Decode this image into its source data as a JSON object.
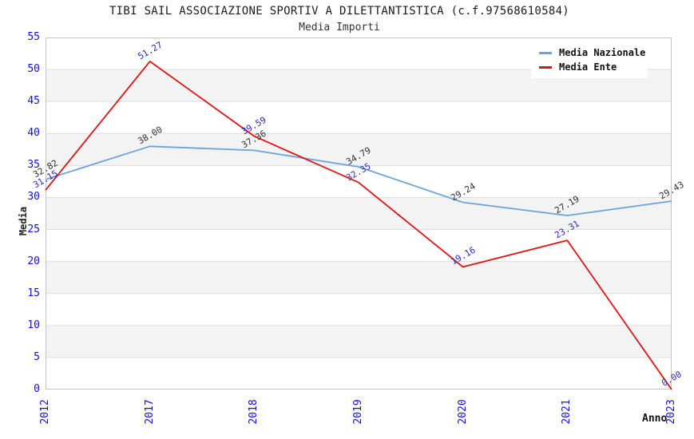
{
  "title": "TIBI SAIL ASSOCIAZIONE SPORTIV A DILETTANTISTICA (c.f.97568610584)",
  "subtitle": "Media Importi",
  "chart_data": {
    "type": "line",
    "categories": [
      "2012",
      "2017",
      "2018",
      "2019",
      "2020",
      "2021",
      "2023"
    ],
    "series": [
      {
        "name": "Media Nazionale",
        "color": "#6ba3dc",
        "label_color": "#303030",
        "values": [
          32.82,
          38.0,
          37.36,
          34.79,
          29.24,
          27.19,
          29.43
        ]
      },
      {
        "name": "Media Ente",
        "color": "#e11212",
        "label_color": "#2a2ac4",
        "values": [
          31.15,
          51.27,
          39.59,
          32.35,
          19.16,
          23.31,
          0.0
        ]
      }
    ],
    "xlabel": "Anno",
    "ylabel": "Media",
    "ylim": [
      0,
      55
    ],
    "ytick_step": 5,
    "grid": true,
    "band_color": "#f3f3f3",
    "gridline_color": "#dedede",
    "frame_color": "#c4c4c4",
    "tick_label_color": "#0f0fe0",
    "legend_position": "top-right"
  }
}
